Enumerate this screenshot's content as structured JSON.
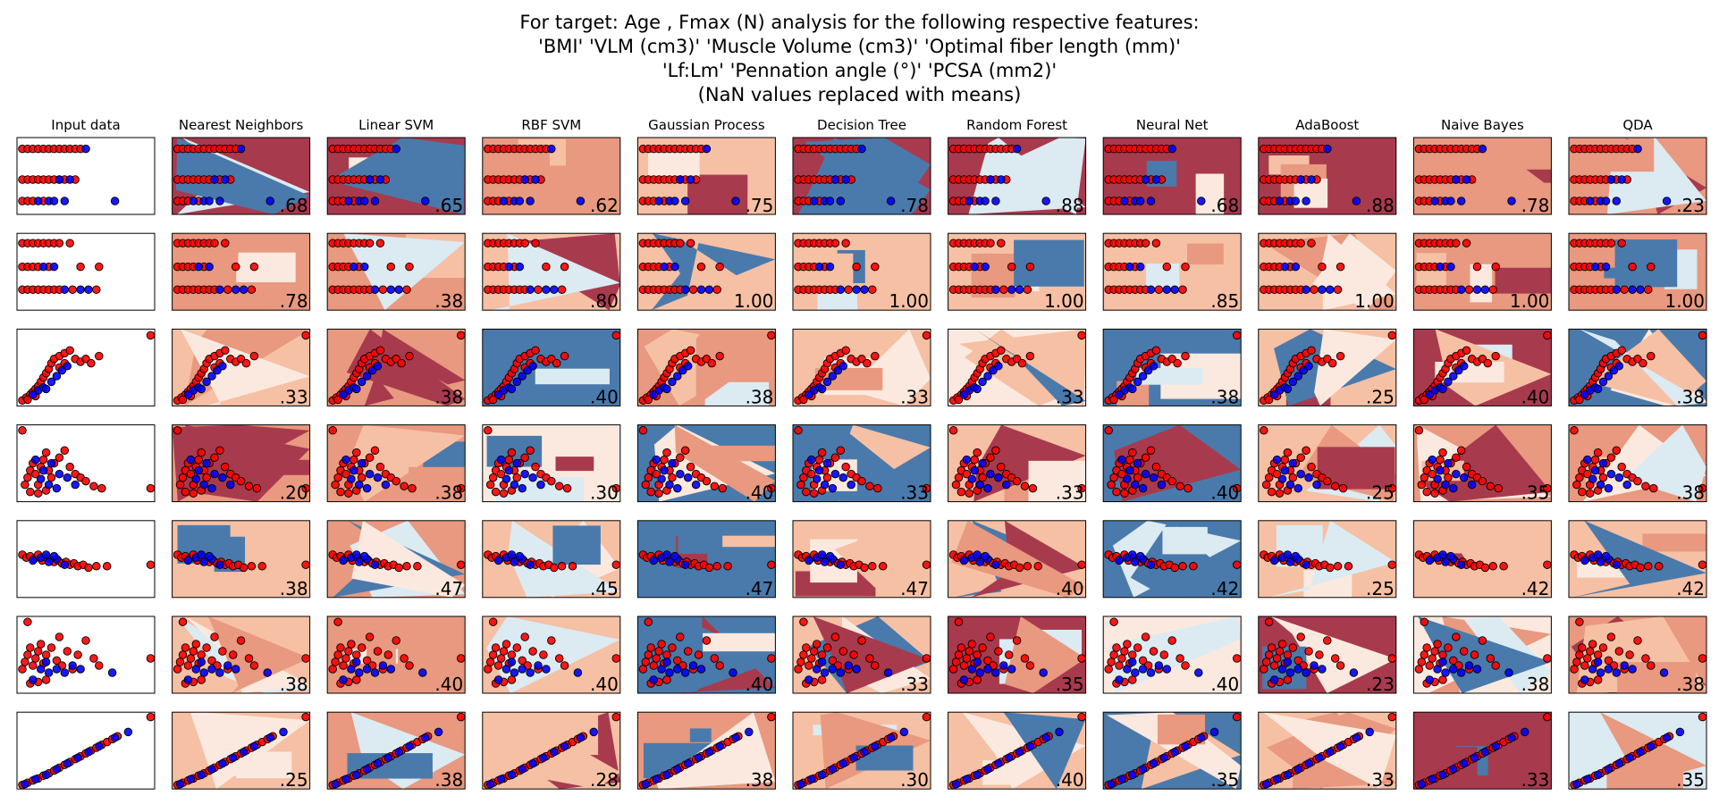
{
  "figure": {
    "title_lines": [
      "For target: Age , Fmax (N) analysis for the following respective features:",
      "'BMI' 'VLM (cm3)' 'Muscle Volume (cm3)' 'Optimal fiber length (mm)'",
      "'Lf:Lm' 'Pennation angle (°)' 'PCSA (mm2)'",
      "(NaN values replaced with means)"
    ]
  },
  "colors": {
    "class_red": "#ff0000",
    "class_blue": "#0000ff",
    "cmap_RdBu": [
      "#67001f",
      "#b2182b",
      "#d6604d",
      "#f4a582",
      "#fddbc7",
      "#f7f7f7",
      "#d1e5f0",
      "#92c5de",
      "#4393c3",
      "#2166ac",
      "#053061"
    ],
    "region_dark_red": "#a83a4e",
    "region_mid_red": "#e8997f",
    "region_light_red": "#f6c0a4",
    "region_pale": "#fbe9df",
    "region_light_blue": "#dceaf2",
    "region_blue": "#4a7aab"
  },
  "chart_data": {
    "type": "scatter",
    "columns": [
      "Input data",
      "Nearest Neighbors",
      "Linear SVM",
      "RBF SVM",
      "Gaussian Process",
      "Decision Tree",
      "Random Forest",
      "Neural Net",
      "AdaBoost",
      "Naive Bayes",
      "QDA"
    ],
    "features": [
      "BMI",
      "VLM (cm3)",
      "Muscle Volume (cm3)",
      "Optimal fiber length (mm)",
      "Lf:Lm",
      "Pennation angle (°)",
      "PCSA (mm2)"
    ],
    "classes": [
      "red",
      "blue"
    ],
    "scores": [
      [
        ".68",
        ".65",
        ".62",
        ".75",
        ".78",
        ".88",
        ".68",
        ".88",
        ".78",
        ".23"
      ],
      [
        ".78",
        ".38",
        ".80",
        "1.00",
        "1.00",
        "1.00",
        ".85",
        "1.00",
        "1.00",
        "1.00"
      ],
      [
        ".33",
        ".38",
        ".40",
        ".38",
        ".33",
        ".33",
        ".38",
        ".25",
        ".40",
        ".38"
      ],
      [
        ".20",
        ".38",
        ".30",
        ".40",
        ".33",
        ".33",
        ".40",
        ".25",
        ".35",
        ".38"
      ],
      [
        ".38",
        ".47",
        ".45",
        ".47",
        ".47",
        ".40",
        ".42",
        ".25",
        ".42",
        ".42"
      ],
      [
        ".38",
        ".40",
        ".40",
        ".40",
        ".33",
        ".35",
        ".40",
        ".23",
        ".38",
        ".38"
      ],
      [
        ".25",
        ".38",
        ".28",
        ".38",
        ".30",
        ".40",
        ".35",
        ".33",
        ".33",
        ".35"
      ]
    ],
    "row_backgrounds": [
      [
        "#ffffff",
        "#a83a4e",
        "#a83a4e",
        "#e8997f",
        "#f6c0a4",
        "#a83a4e",
        "#a83a4e",
        "#a83a4e",
        "#a83a4e",
        "#e8997f",
        "#e8997f"
      ],
      [
        "#ffffff",
        "#e8997f",
        "#e8997f",
        "#f6c0a4",
        "#f6c0a4",
        "#f6c0a4",
        "#f6c0a4",
        "#f6c0a4",
        "#f6c0a4",
        "#e8997f",
        "#e8997f"
      ],
      [
        "#ffffff",
        "#f6c0a4",
        "#e8997f",
        "#4a7aab",
        "#e8997f",
        "#f6c0a4",
        "#fbe9df",
        "#4a7aab",
        "#f6c0a4",
        "#a83a4e",
        "#4a7aab"
      ],
      [
        "#ffffff",
        "#e8997f",
        "#e8997f",
        "#fbe9df",
        "#4a7aab",
        "#4a7aab",
        "#f6c0a4",
        "#4a7aab",
        "#f6c0a4",
        "#e8997f",
        "#e8997f"
      ],
      [
        "#ffffff",
        "#f6c0a4",
        "#e8997f",
        "#f6c0a4",
        "#4a7aab",
        "#f6c0a4",
        "#f6c0a4",
        "#4a7aab",
        "#f6c0a4",
        "#f6c0a4",
        "#f6c0a4"
      ],
      [
        "#ffffff",
        "#f6c0a4",
        "#e8997f",
        "#f6c0a4",
        "#4a7aab",
        "#f6c0a4",
        "#a83a4e",
        "#fbe9df",
        "#a83a4e",
        "#fbe9df",
        "#e8997f"
      ],
      [
        "#ffffff",
        "#f6c0a4",
        "#e8997f",
        "#f6c0a4",
        "#e8997f",
        "#f6c0a4",
        "#f6c0a4",
        "#4a7aab",
        "#f6c0a4",
        "#a83a4e",
        "#dceaf2"
      ]
    ],
    "row_points": [
      {
        "red": [
          [
            0.02,
            0.88
          ],
          [
            0.06,
            0.88
          ],
          [
            0.1,
            0.88
          ],
          [
            0.14,
            0.88
          ],
          [
            0.18,
            0.88
          ],
          [
            0.22,
            0.88
          ],
          [
            0.26,
            0.88
          ],
          [
            0.3,
            0.88
          ],
          [
            0.34,
            0.88
          ],
          [
            0.38,
            0.88
          ],
          [
            0.42,
            0.88
          ],
          [
            0.46,
            0.88
          ],
          [
            0.02,
            0.45
          ],
          [
            0.06,
            0.45
          ],
          [
            0.1,
            0.45
          ],
          [
            0.14,
            0.45
          ],
          [
            0.18,
            0.45
          ],
          [
            0.22,
            0.45
          ],
          [
            0.26,
            0.45
          ],
          [
            0.3,
            0.45
          ],
          [
            0.34,
            0.45
          ],
          [
            0.42,
            0.45
          ],
          [
            0.02,
            0.15
          ],
          [
            0.06,
            0.15
          ],
          [
            0.1,
            0.15
          ],
          [
            0.18,
            0.15
          ]
        ],
        "blue": [
          [
            0.5,
            0.88
          ],
          [
            0.3,
            0.45
          ],
          [
            0.38,
            0.45
          ],
          [
            0.14,
            0.15
          ],
          [
            0.22,
            0.15
          ],
          [
            0.26,
            0.15
          ],
          [
            0.34,
            0.15
          ],
          [
            0.72,
            0.15
          ]
        ]
      },
      {
        "red": [
          [
            0.02,
            0.9
          ],
          [
            0.06,
            0.9
          ],
          [
            0.1,
            0.9
          ],
          [
            0.14,
            0.9
          ],
          [
            0.18,
            0.9
          ],
          [
            0.22,
            0.9
          ],
          [
            0.26,
            0.9
          ],
          [
            0.3,
            0.9
          ],
          [
            0.38,
            0.9
          ],
          [
            0.02,
            0.57
          ],
          [
            0.06,
            0.57
          ],
          [
            0.1,
            0.57
          ],
          [
            0.14,
            0.57
          ],
          [
            0.22,
            0.57
          ],
          [
            0.46,
            0.57
          ],
          [
            0.6,
            0.57
          ],
          [
            0.02,
            0.25
          ],
          [
            0.06,
            0.25
          ],
          [
            0.1,
            0.25
          ],
          [
            0.14,
            0.25
          ],
          [
            0.18,
            0.25
          ],
          [
            0.22,
            0.25
          ],
          [
            0.26,
            0.25
          ],
          [
            0.3,
            0.25
          ],
          [
            0.4,
            0.25
          ],
          [
            0.58,
            0.25
          ]
        ],
        "blue": [
          [
            0.18,
            0.57
          ],
          [
            0.26,
            0.57
          ],
          [
            0.34,
            0.25
          ],
          [
            0.46,
            0.25
          ],
          [
            0.52,
            0.25
          ]
        ]
      },
      {
        "red": [
          [
            0.02,
            0.04
          ],
          [
            0.05,
            0.08
          ],
          [
            0.08,
            0.12
          ],
          [
            0.1,
            0.16
          ],
          [
            0.12,
            0.2
          ],
          [
            0.14,
            0.24
          ],
          [
            0.16,
            0.3
          ],
          [
            0.18,
            0.36
          ],
          [
            0.2,
            0.42
          ],
          [
            0.22,
            0.48
          ],
          [
            0.24,
            0.56
          ],
          [
            0.26,
            0.62
          ],
          [
            0.3,
            0.66
          ],
          [
            0.34,
            0.7
          ],
          [
            0.38,
            0.74
          ],
          [
            0.42,
            0.62
          ],
          [
            0.46,
            0.58
          ],
          [
            0.5,
            0.62
          ],
          [
            0.54,
            0.56
          ],
          [
            0.6,
            0.66
          ],
          [
            0.3,
            0.5
          ],
          [
            0.34,
            0.56
          ],
          [
            0.06,
            0.05
          ],
          [
            0.12,
            0.1
          ],
          [
            0.99,
            0.95
          ]
        ],
        "blue": [
          [
            0.14,
            0.18
          ],
          [
            0.18,
            0.22
          ],
          [
            0.24,
            0.3
          ],
          [
            0.28,
            0.38
          ],
          [
            0.32,
            0.46
          ],
          [
            0.36,
            0.52
          ],
          [
            0.2,
            0.2
          ],
          [
            0.1,
            0.12
          ]
        ]
      },
      {
        "red": [
          [
            0.02,
            0.96
          ],
          [
            0.04,
            0.2
          ],
          [
            0.06,
            0.3
          ],
          [
            0.08,
            0.4
          ],
          [
            0.1,
            0.5
          ],
          [
            0.12,
            0.35
          ],
          [
            0.14,
            0.2
          ],
          [
            0.16,
            0.45
          ],
          [
            0.18,
            0.55
          ],
          [
            0.2,
            0.65
          ],
          [
            0.22,
            0.4
          ],
          [
            0.24,
            0.3
          ],
          [
            0.26,
            0.5
          ],
          [
            0.3,
            0.58
          ],
          [
            0.34,
            0.68
          ],
          [
            0.38,
            0.45
          ],
          [
            0.42,
            0.35
          ],
          [
            0.46,
            0.3
          ],
          [
            0.5,
            0.25
          ],
          [
            0.56,
            0.18
          ],
          [
            0.62,
            0.15
          ],
          [
            0.08,
            0.1
          ],
          [
            0.14,
            0.08
          ],
          [
            0.2,
            0.12
          ],
          [
            0.99,
            0.15
          ]
        ],
        "blue": [
          [
            0.12,
            0.55
          ],
          [
            0.18,
            0.4
          ],
          [
            0.24,
            0.5
          ],
          [
            0.3,
            0.35
          ],
          [
            0.36,
            0.3
          ],
          [
            0.42,
            0.2
          ],
          [
            0.22,
            0.2
          ],
          [
            0.28,
            0.15
          ],
          [
            0.16,
            0.28
          ]
        ]
      },
      {
        "red": [
          [
            0.02,
            0.56
          ],
          [
            0.05,
            0.52
          ],
          [
            0.08,
            0.54
          ],
          [
            0.11,
            0.5
          ],
          [
            0.14,
            0.56
          ],
          [
            0.17,
            0.48
          ],
          [
            0.2,
            0.52
          ],
          [
            0.23,
            0.5
          ],
          [
            0.26,
            0.46
          ],
          [
            0.29,
            0.48
          ],
          [
            0.32,
            0.44
          ],
          [
            0.35,
            0.46
          ],
          [
            0.38,
            0.42
          ],
          [
            0.41,
            0.44
          ],
          [
            0.44,
            0.4
          ],
          [
            0.48,
            0.42
          ],
          [
            0.52,
            0.38
          ],
          [
            0.58,
            0.4
          ],
          [
            0.66,
            0.4
          ],
          [
            0.99,
            0.42
          ]
        ],
        "blue": [
          [
            0.1,
            0.48
          ],
          [
            0.16,
            0.52
          ],
          [
            0.22,
            0.46
          ],
          [
            0.28,
            0.5
          ],
          [
            0.34,
            0.42
          ],
          [
            0.2,
            0.56
          ],
          [
            0.26,
            0.54
          ]
        ]
      },
      {
        "red": [
          [
            0.06,
            0.96
          ],
          [
            0.02,
            0.3
          ],
          [
            0.04,
            0.4
          ],
          [
            0.06,
            0.5
          ],
          [
            0.08,
            0.6
          ],
          [
            0.1,
            0.35
          ],
          [
            0.12,
            0.45
          ],
          [
            0.14,
            0.55
          ],
          [
            0.16,
            0.65
          ],
          [
            0.18,
            0.38
          ],
          [
            0.2,
            0.5
          ],
          [
            0.24,
            0.6
          ],
          [
            0.28,
            0.42
          ],
          [
            0.32,
            0.35
          ],
          [
            0.36,
            0.55
          ],
          [
            0.4,
            0.3
          ],
          [
            0.44,
            0.5
          ],
          [
            0.5,
            0.7
          ],
          [
            0.56,
            0.45
          ],
          [
            0.6,
            0.35
          ],
          [
            0.08,
            0.1
          ],
          [
            0.14,
            0.12
          ],
          [
            0.2,
            0.15
          ],
          [
            0.99,
            0.45
          ],
          [
            0.3,
            0.75
          ]
        ],
        "blue": [
          [
            0.1,
            0.15
          ],
          [
            0.16,
            0.3
          ],
          [
            0.22,
            0.25
          ],
          [
            0.28,
            0.3
          ],
          [
            0.34,
            0.25
          ],
          [
            0.4,
            0.35
          ],
          [
            0.46,
            0.3
          ],
          [
            0.7,
            0.25
          ],
          [
            0.2,
            0.4
          ]
        ]
      },
      {
        "red": [
          [
            0.02,
            0.02
          ],
          [
            0.06,
            0.05
          ],
          [
            0.1,
            0.08
          ],
          [
            0.14,
            0.11
          ],
          [
            0.18,
            0.15
          ],
          [
            0.22,
            0.18
          ],
          [
            0.26,
            0.22
          ],
          [
            0.3,
            0.26
          ],
          [
            0.34,
            0.3
          ],
          [
            0.38,
            0.34
          ],
          [
            0.42,
            0.38
          ],
          [
            0.46,
            0.42
          ],
          [
            0.5,
            0.46
          ],
          [
            0.54,
            0.5
          ],
          [
            0.58,
            0.54
          ],
          [
            0.62,
            0.58
          ],
          [
            0.66,
            0.62
          ],
          [
            0.7,
            0.66
          ],
          [
            0.74,
            0.7
          ],
          [
            0.99,
            0.97
          ]
        ],
        "blue": [
          [
            0.04,
            0.03
          ],
          [
            0.12,
            0.1
          ],
          [
            0.2,
            0.16
          ],
          [
            0.28,
            0.24
          ],
          [
            0.36,
            0.32
          ],
          [
            0.44,
            0.4
          ],
          [
            0.52,
            0.48
          ],
          [
            0.6,
            0.56
          ],
          [
            0.72,
            0.68
          ],
          [
            0.82,
            0.76
          ]
        ]
      }
    ],
    "xlim": [
      0,
      1
    ],
    "ylim": [
      0,
      1
    ],
    "grid": false,
    "legend": "none"
  }
}
